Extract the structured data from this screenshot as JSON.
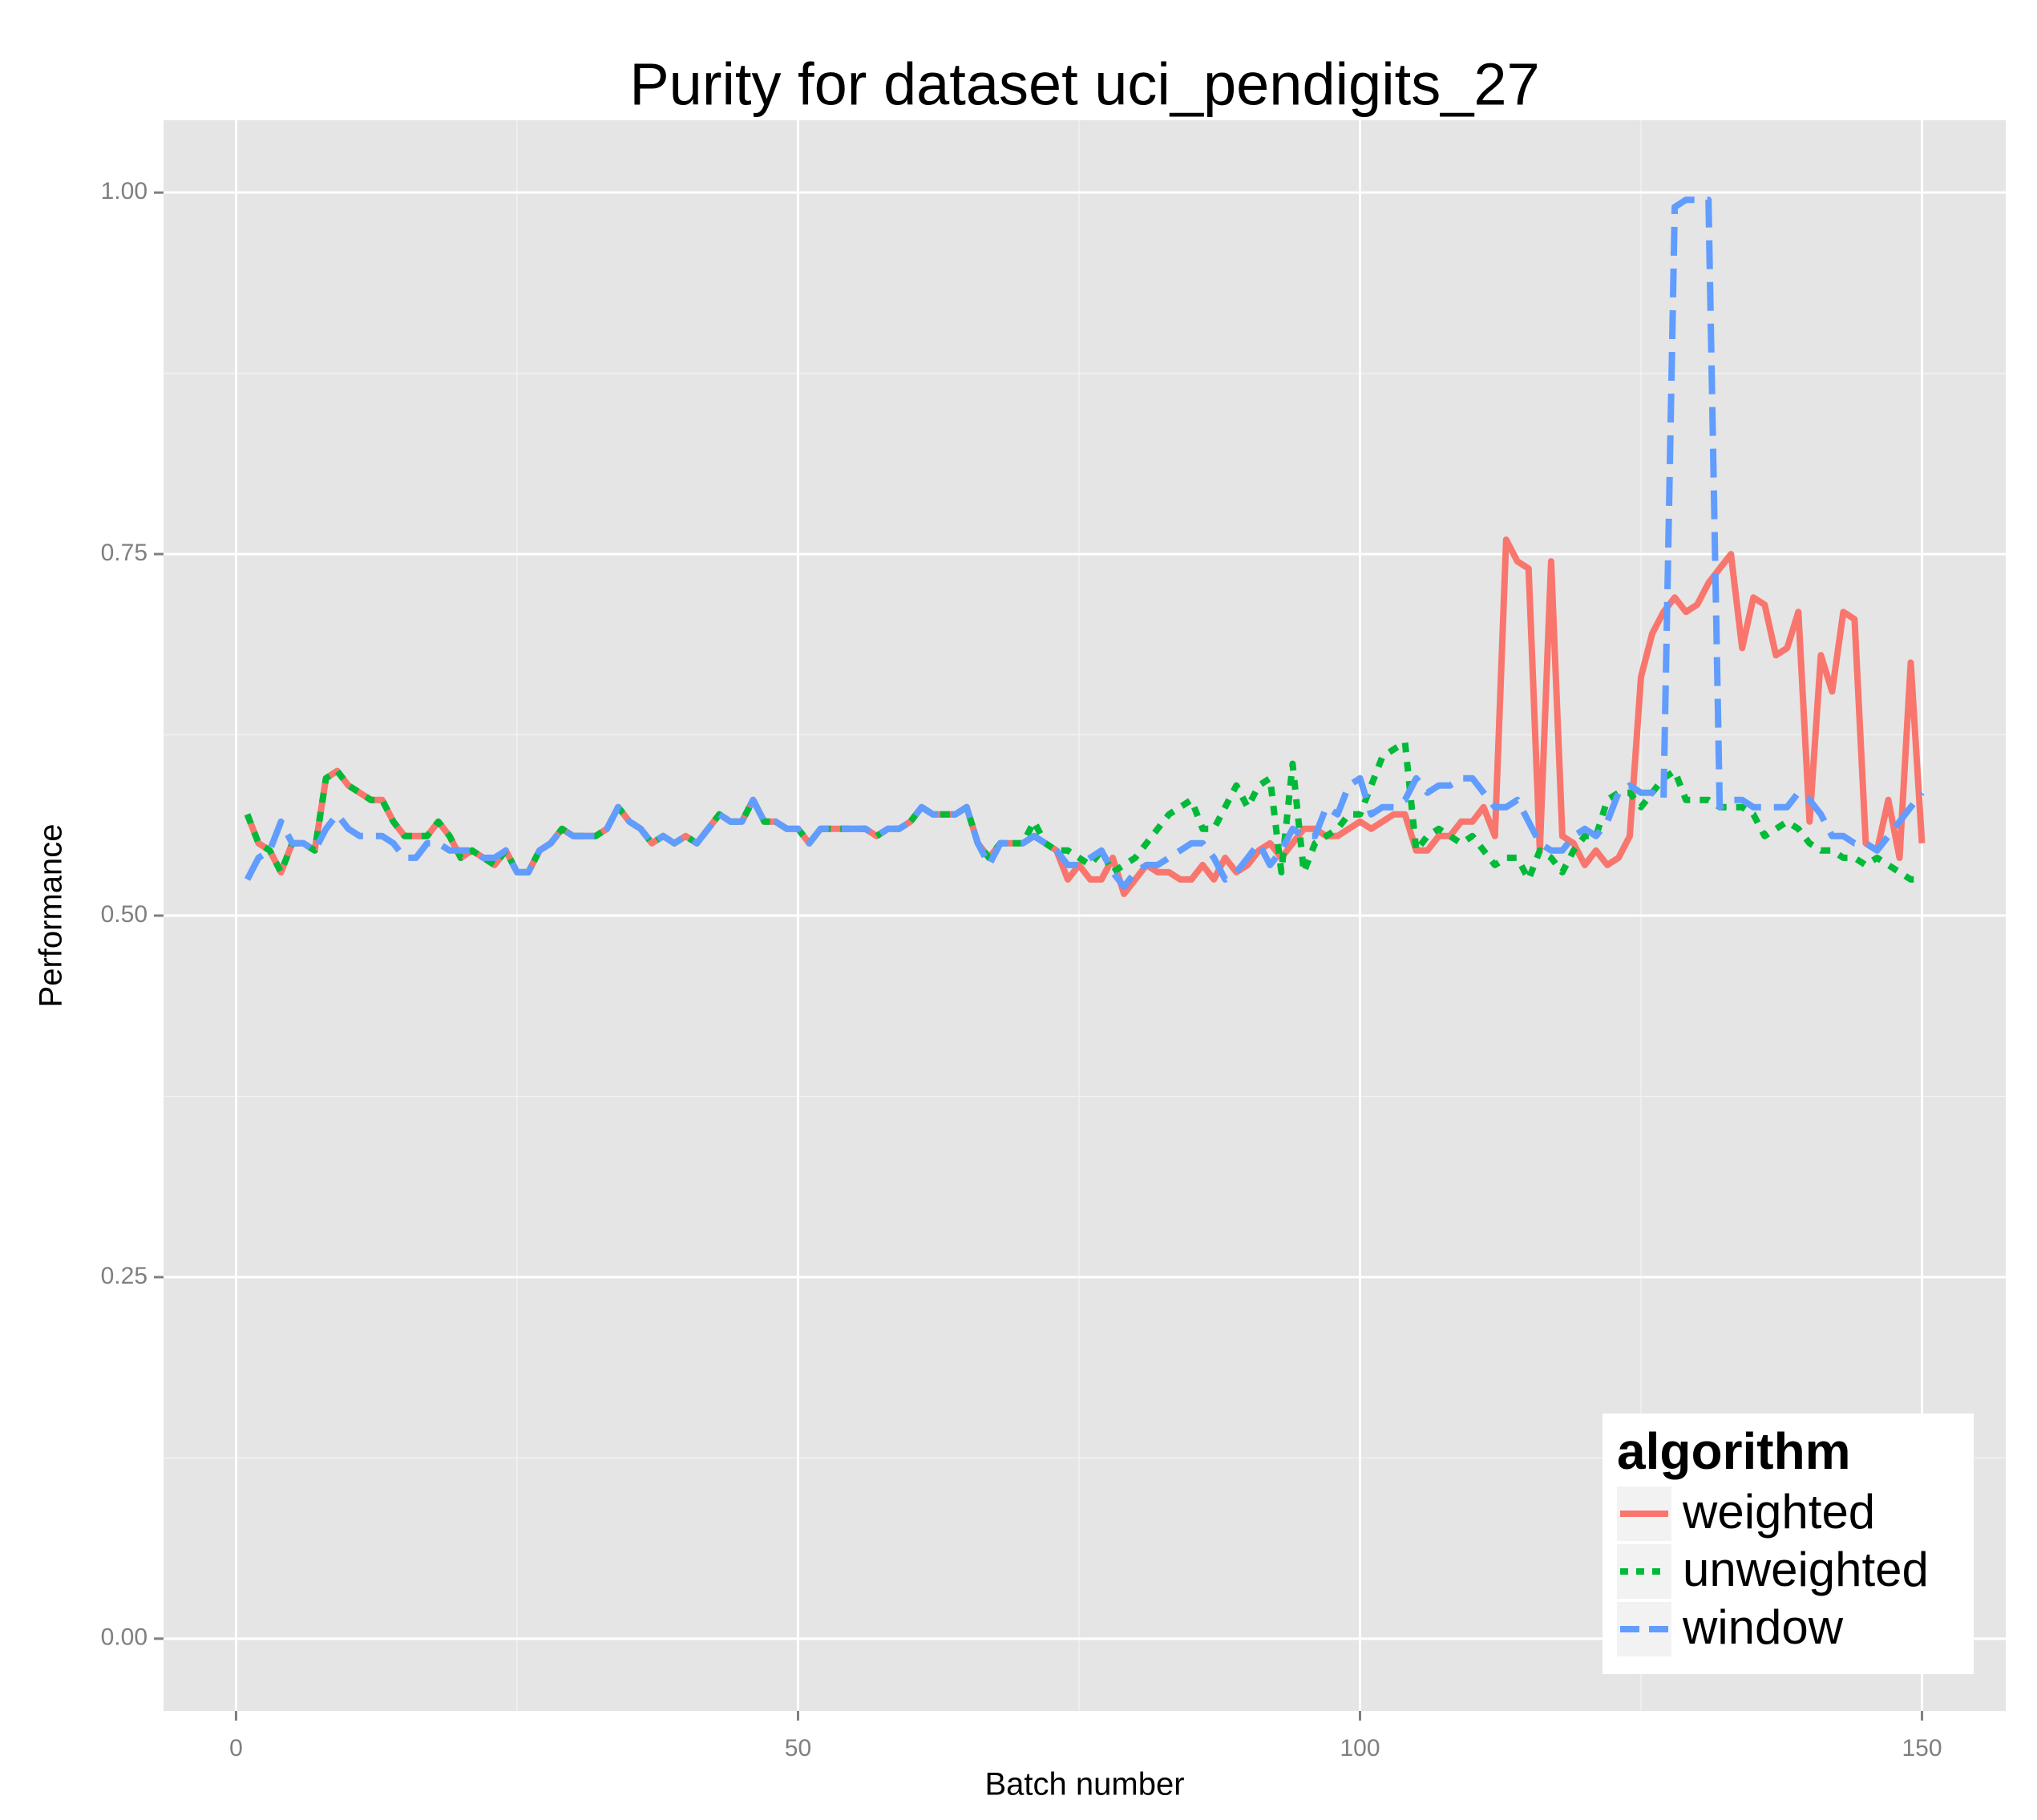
{
  "chart_data": {
    "type": "line",
    "title": "Purity for dataset uci_pendigits_27",
    "x_label": "Batch number",
    "y_label": "Performance",
    "legend_title": "algorithm",
    "legend_position": "bottom-right",
    "grid": true,
    "xlim": [
      -6.45,
      157.45
    ],
    "ylim": [
      -0.05,
      1.05
    ],
    "xticks": [
      0,
      50,
      100,
      150
    ],
    "yticks": [
      {
        "value": 0,
        "label": "0.00"
      },
      {
        "value": 0.25,
        "label": "0.25"
      },
      {
        "value": 0.5,
        "label": "0.50"
      },
      {
        "value": 0.75,
        "label": "0.75"
      },
      {
        "value": 1,
        "label": "1.00"
      }
    ],
    "x": [
      1,
      2,
      3,
      4,
      5,
      6,
      7,
      8,
      9,
      10,
      11,
      12,
      13,
      14,
      15,
      16,
      17,
      18,
      19,
      20,
      21,
      22,
      23,
      24,
      25,
      26,
      27,
      28,
      29,
      30,
      31,
      32,
      33,
      34,
      35,
      36,
      37,
      38,
      39,
      40,
      41,
      42,
      43,
      44,
      45,
      46,
      47,
      48,
      49,
      50,
      51,
      52,
      53,
      54,
      55,
      56,
      57,
      58,
      59,
      60,
      61,
      62,
      63,
      64,
      65,
      66,
      67,
      68,
      69,
      70,
      71,
      72,
      73,
      74,
      75,
      76,
      77,
      78,
      79,
      80,
      81,
      82,
      83,
      84,
      85,
      86,
      87,
      88,
      89,
      90,
      91,
      92,
      93,
      94,
      95,
      96,
      97,
      98,
      99,
      100,
      101,
      102,
      103,
      104,
      105,
      106,
      107,
      108,
      109,
      110,
      111,
      112,
      113,
      114,
      115,
      116,
      117,
      118,
      119,
      120,
      121,
      122,
      123,
      124,
      125,
      126,
      127,
      128,
      129,
      130,
      131,
      132,
      133,
      134,
      135,
      136,
      137,
      138,
      139,
      140,
      141,
      142,
      143,
      144,
      145,
      146,
      147,
      148,
      149,
      150
    ],
    "series": [
      {
        "name": "weighted",
        "color": "#F8766D",
        "dash": "solid",
        "values": [
          0.57,
          0.55,
          0.545,
          0.53,
          0.55,
          0.55,
          0.545,
          0.595,
          0.6,
          0.59,
          0.585,
          0.58,
          0.58,
          0.565,
          0.555,
          0.555,
          0.555,
          0.565,
          0.555,
          0.54,
          0.545,
          0.54,
          0.535,
          0.545,
          0.53,
          0.53,
          0.545,
          0.55,
          0.56,
          0.555,
          0.555,
          0.555,
          0.56,
          0.575,
          0.565,
          0.56,
          0.55,
          0.555,
          0.55,
          0.555,
          0.55,
          0.56,
          0.57,
          0.565,
          0.565,
          0.58,
          0.565,
          0.565,
          0.56,
          0.56,
          0.55,
          0.56,
          0.56,
          0.56,
          0.56,
          0.56,
          0.555,
          0.56,
          0.56,
          0.565,
          0.575,
          0.57,
          0.57,
          0.57,
          0.575,
          0.55,
          0.54,
          0.55,
          0.55,
          0.55,
          0.555,
          0.55,
          0.545,
          0.525,
          0.535,
          0.525,
          0.525,
          0.54,
          0.515,
          0.525,
          0.535,
          0.53,
          0.53,
          0.525,
          0.525,
          0.535,
          0.525,
          0.54,
          0.53,
          0.535,
          0.545,
          0.55,
          0.54,
          0.55,
          0.56,
          0.56,
          0.555,
          0.555,
          0.56,
          0.565,
          0.56,
          0.565,
          0.57,
          0.57,
          0.545,
          0.545,
          0.555,
          0.555,
          0.565,
          0.565,
          0.575,
          0.555,
          0.76,
          0.745,
          0.74,
          0.545,
          0.745,
          0.555,
          0.55,
          0.535,
          0.545,
          0.535,
          0.54,
          0.555,
          0.665,
          0.695,
          0.71,
          0.72,
          0.71,
          0.715,
          0.73,
          0.74,
          0.75,
          0.685,
          0.72,
          0.715,
          0.68,
          0.685,
          0.71,
          0.565,
          0.68,
          0.655,
          0.71,
          0.705,
          0.55,
          0.545,
          0.58,
          0.54,
          0.675,
          0.55
        ]
      },
      {
        "name": "unweighted",
        "color": "#00BA38",
        "dash": "dotted",
        "values": [
          0.57,
          0.55,
          0.545,
          0.53,
          0.55,
          0.55,
          0.545,
          0.595,
          0.6,
          0.59,
          0.585,
          0.58,
          0.58,
          0.565,
          0.555,
          0.555,
          0.555,
          0.565,
          0.555,
          0.54,
          0.545,
          0.54,
          0.535,
          0.545,
          0.53,
          0.53,
          0.545,
          0.55,
          0.56,
          0.555,
          0.555,
          0.555,
          0.56,
          0.575,
          0.565,
          0.56,
          0.55,
          0.555,
          0.55,
          0.555,
          0.55,
          0.56,
          0.57,
          0.565,
          0.565,
          0.58,
          0.565,
          0.565,
          0.56,
          0.56,
          0.55,
          0.56,
          0.56,
          0.56,
          0.56,
          0.56,
          0.555,
          0.56,
          0.56,
          0.565,
          0.575,
          0.57,
          0.57,
          0.57,
          0.575,
          0.55,
          0.54,
          0.55,
          0.55,
          0.55,
          0.565,
          0.55,
          0.545,
          0.545,
          0.54,
          0.535,
          0.545,
          0.53,
          0.535,
          0.54,
          0.55,
          0.56,
          0.57,
          0.575,
          0.58,
          0.56,
          0.56,
          0.575,
          0.59,
          0.575,
          0.59,
          0.595,
          0.53,
          0.605,
          0.53,
          0.55,
          0.555,
          0.56,
          0.57,
          0.57,
          0.59,
          0.61,
          0.615,
          0.62,
          0.545,
          0.555,
          0.56,
          0.555,
          0.55,
          0.555,
          0.545,
          0.535,
          0.54,
          0.54,
          0.525,
          0.545,
          0.54,
          0.53,
          0.545,
          0.555,
          0.555,
          0.58,
          0.585,
          0.585,
          0.575,
          0.585,
          0.595,
          0.6,
          0.58,
          0.58,
          0.58,
          0.575,
          0.575,
          0.575,
          0.57,
          0.555,
          0.56,
          0.565,
          0.56,
          0.55,
          0.545,
          0.545,
          0.54,
          0.54,
          0.535,
          0.54,
          0.535,
          0.53,
          0.525,
          0.525
        ]
      },
      {
        "name": "window",
        "color": "#619CFF",
        "dash": "dashed",
        "values": [
          0.525,
          0.54,
          0.545,
          0.565,
          0.55,
          0.55,
          0.545,
          0.56,
          0.57,
          0.56,
          0.555,
          0.555,
          0.555,
          0.55,
          0.54,
          0.54,
          0.55,
          0.55,
          0.545,
          0.545,
          0.545,
          0.54,
          0.54,
          0.545,
          0.53,
          0.53,
          0.545,
          0.55,
          0.56,
          0.555,
          0.555,
          0.555,
          0.56,
          0.575,
          0.565,
          0.56,
          0.55,
          0.555,
          0.55,
          0.555,
          0.55,
          0.56,
          0.57,
          0.565,
          0.565,
          0.58,
          0.565,
          0.565,
          0.56,
          0.56,
          0.55,
          0.56,
          0.56,
          0.56,
          0.56,
          0.56,
          0.555,
          0.56,
          0.56,
          0.565,
          0.575,
          0.57,
          0.57,
          0.57,
          0.575,
          0.55,
          0.535,
          0.55,
          0.55,
          0.55,
          0.555,
          0.55,
          0.545,
          0.535,
          0.535,
          0.54,
          0.545,
          0.53,
          0.52,
          0.53,
          0.535,
          0.535,
          0.54,
          0.545,
          0.55,
          0.55,
          0.54,
          0.525,
          0.53,
          0.54,
          0.55,
          0.535,
          0.545,
          0.56,
          0.555,
          0.555,
          0.575,
          0.57,
          0.59,
          0.595,
          0.57,
          0.575,
          0.575,
          0.58,
          0.595,
          0.585,
          0.59,
          0.59,
          0.595,
          0.595,
          0.585,
          0.575,
          0.575,
          0.58,
          0.565,
          0.55,
          0.545,
          0.545,
          0.555,
          0.56,
          0.555,
          0.565,
          0.585,
          0.59,
          0.585,
          0.585,
          0.58,
          0.99,
          0.995,
          0.995,
          0.995,
          0.575,
          0.58,
          0.58,
          0.575,
          0.575,
          0.575,
          0.575,
          0.585,
          0.58,
          0.57,
          0.555,
          0.555,
          0.55,
          0.55,
          0.545,
          0.555,
          0.565,
          0.575,
          0.585
        ]
      }
    ]
  }
}
